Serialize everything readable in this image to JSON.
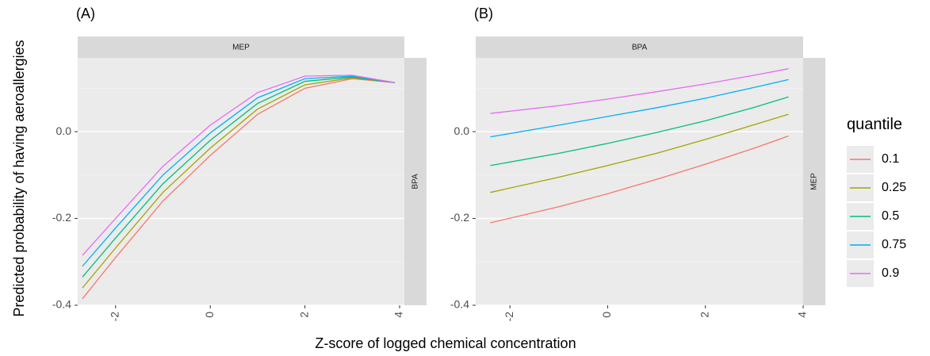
{
  "chart_data": {
    "type": "line",
    "ylabel": "Predicted probability of having aeroallergies",
    "xlabel": "Z-score of logged chemical concentration",
    "ylim": [
      -0.4,
      0.17
    ],
    "yticks": [
      -0.4,
      -0.2,
      0.0
    ],
    "ytick_labels": [
      "-0.4",
      "-0.2",
      "0.0"
    ],
    "xticks": [
      -2,
      0,
      2,
      4
    ],
    "xtick_labels": [
      "-2",
      "0",
      "2",
      "4"
    ],
    "grid": true,
    "reference_line_y": 0.0,
    "legend": {
      "title": "quantile",
      "placement": "right",
      "entries": [
        "0.1",
        "0.25",
        "0.5",
        "0.75",
        "0.9"
      ]
    },
    "colors": [
      "#F8766D",
      "#A3A500",
      "#00BF7D",
      "#00B0F6",
      "#E76BF3"
    ],
    "panels": [
      {
        "tag": "(A)",
        "strip_top": "MEP",
        "strip_right": "BPA",
        "xlim": [
          -2.8,
          4.1
        ],
        "x": [
          -2.7,
          -2.0,
          -1.0,
          0.0,
          1.0,
          2.0,
          3.0,
          3.9
        ],
        "series": [
          {
            "name": "0.1",
            "values": [
              -0.385,
              -0.29,
              -0.16,
              -0.055,
              0.04,
              0.1,
              0.122,
              0.113
            ]
          },
          {
            "name": "0.25",
            "values": [
              -0.36,
              -0.268,
              -0.14,
              -0.038,
              0.052,
              0.108,
              0.124,
              0.113
            ]
          },
          {
            "name": "0.5",
            "values": [
              -0.335,
              -0.245,
              -0.12,
              -0.02,
              0.065,
              0.116,
              0.126,
              0.113
            ]
          },
          {
            "name": "0.75",
            "values": [
              -0.31,
              -0.222,
              -0.1,
              -0.003,
              0.078,
              0.122,
              0.128,
              0.113
            ]
          },
          {
            "name": "0.9",
            "values": [
              -0.285,
              -0.2,
              -0.08,
              0.015,
              0.09,
              0.128,
              0.13,
              0.113
            ]
          }
        ]
      },
      {
        "tag": "(B)",
        "strip_top": "BPA",
        "strip_right": "MEP",
        "xlim": [
          -2.7,
          4.0
        ],
        "x": [
          -2.4,
          -1.0,
          0.0,
          1.0,
          2.0,
          3.0,
          3.7
        ],
        "series": [
          {
            "name": "0.1",
            "values": [
              -0.21,
              -0.173,
              -0.143,
              -0.11,
              -0.075,
              -0.038,
              -0.01
            ]
          },
          {
            "name": "0.25",
            "values": [
              -0.14,
              -0.105,
              -0.078,
              -0.05,
              -0.018,
              0.016,
              0.04
            ]
          },
          {
            "name": "0.5",
            "values": [
              -0.078,
              -0.05,
              -0.027,
              -0.002,
              0.025,
              0.056,
              0.08
            ]
          },
          {
            "name": "0.75",
            "values": [
              -0.012,
              0.015,
              0.035,
              0.055,
              0.077,
              0.102,
              0.12
            ]
          },
          {
            "name": "0.9",
            "values": [
              0.042,
              0.06,
              0.075,
              0.092,
              0.11,
              0.13,
              0.145
            ]
          }
        ]
      }
    ]
  }
}
